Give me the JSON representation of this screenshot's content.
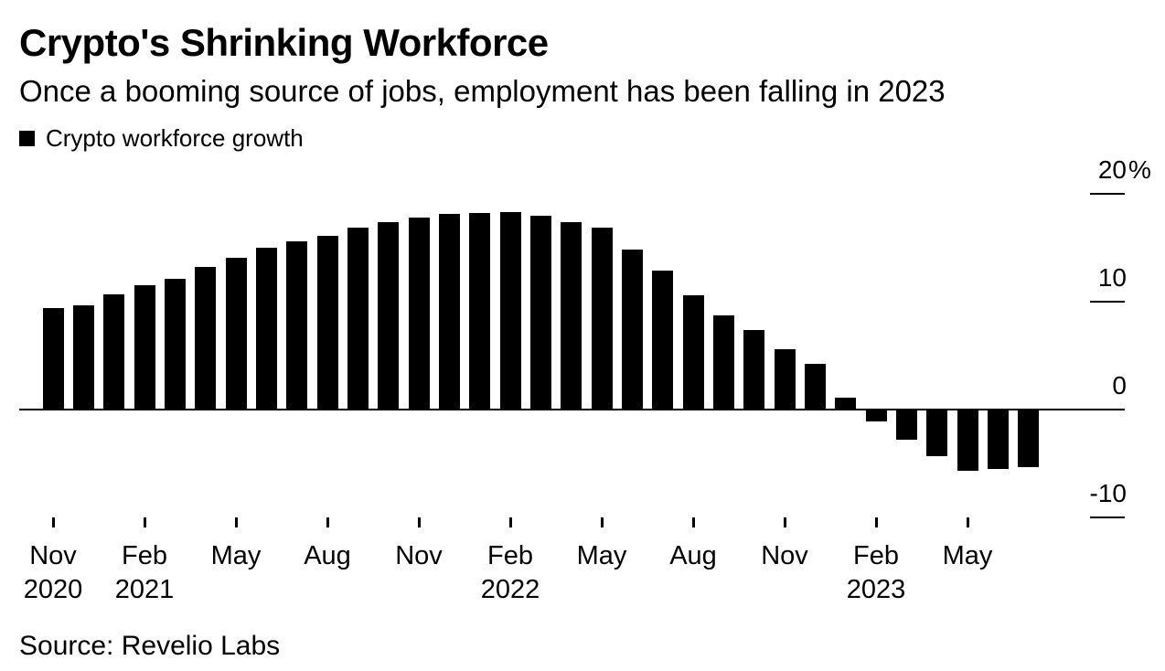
{
  "header": {
    "title": "Crypto's Shrinking Workforce",
    "subtitle": "Once a booming source of jobs, employment has been falling in 2023"
  },
  "legend": {
    "label": "Crypto workforce growth",
    "swatch_color": "#000000"
  },
  "source": "Source: Revelio Labs",
  "chart_data": {
    "type": "bar",
    "title": "Crypto's Shrinking Workforce",
    "subtitle": "Once a booming source of jobs, employment has been falling in 2023",
    "series_name": "Crypto workforce growth",
    "unit": "percent",
    "bar_color": "#000000",
    "grid": false,
    "legend_position": "top-left",
    "ylim": [
      -10,
      20
    ],
    "x": [
      "Nov 2020",
      "Dec 2020",
      "Jan 2021",
      "Feb 2021",
      "Mar 2021",
      "Apr 2021",
      "May 2021",
      "Jun 2021",
      "Jul 2021",
      "Aug 2021",
      "Sep 2021",
      "Oct 2021",
      "Nov 2021",
      "Dec 2021",
      "Jan 2022",
      "Feb 2022",
      "Mar 2022",
      "Apr 2022",
      "May 2022",
      "Jun 2022",
      "Jul 2022",
      "Aug 2022",
      "Sep 2022",
      "Oct 2022",
      "Nov 2022",
      "Dec 2022",
      "Jan 2023",
      "Feb 2023",
      "Mar 2023",
      "Apr 2023",
      "May 2023",
      "Jun 2023",
      "Jul 2023"
    ],
    "values": [
      9.4,
      9.7,
      10.7,
      11.5,
      12.1,
      13.2,
      14.1,
      15.0,
      15.6,
      16.1,
      16.9,
      17.4,
      17.8,
      18.1,
      18.2,
      18.3,
      18.0,
      17.4,
      16.9,
      14.8,
      12.9,
      10.6,
      8.7,
      7.4,
      5.6,
      4.2,
      1.1,
      -1.1,
      -2.8,
      -4.3,
      -5.7,
      -5.5,
      -5.3
    ],
    "y_ticks": [
      {
        "label": "20",
        "suffix": "%",
        "value": 20
      },
      {
        "label": "10",
        "value": 10
      },
      {
        "label": "0",
        "value": 0
      },
      {
        "label": "-10",
        "value": -10
      }
    ],
    "x_ticks": [
      {
        "month": "Nov",
        "year": "2020"
      },
      {
        "month": "Feb",
        "year": "2021"
      },
      {
        "month": "May"
      },
      {
        "month": "Aug"
      },
      {
        "month": "Nov"
      },
      {
        "month": "Feb",
        "year": "2022"
      },
      {
        "month": "May"
      },
      {
        "month": "Aug"
      },
      {
        "month": "Nov"
      },
      {
        "month": "Feb",
        "year": "2023"
      },
      {
        "month": "May"
      }
    ]
  }
}
